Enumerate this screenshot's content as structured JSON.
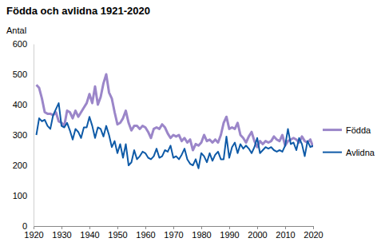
{
  "chart_data": {
    "type": "line",
    "title": "Födda och avlidna 1921-2020",
    "y_label": "Antal",
    "x": [
      1921,
      1922,
      1923,
      1924,
      1925,
      1926,
      1927,
      1928,
      1929,
      1930,
      1931,
      1932,
      1933,
      1934,
      1935,
      1936,
      1937,
      1938,
      1939,
      1940,
      1941,
      1942,
      1943,
      1944,
      1945,
      1946,
      1947,
      1948,
      1949,
      1950,
      1951,
      1952,
      1953,
      1954,
      1955,
      1956,
      1957,
      1958,
      1959,
      1960,
      1961,
      1962,
      1963,
      1964,
      1965,
      1966,
      1967,
      1968,
      1969,
      1970,
      1971,
      1972,
      1973,
      1974,
      1975,
      1976,
      1977,
      1978,
      1979,
      1980,
      1981,
      1982,
      1983,
      1984,
      1985,
      1986,
      1987,
      1988,
      1989,
      1990,
      1991,
      1992,
      1993,
      1994,
      1995,
      1996,
      1997,
      1998,
      1999,
      2000,
      2001,
      2002,
      2003,
      2004,
      2005,
      2006,
      2007,
      2008,
      2009,
      2010,
      2011,
      2012,
      2013,
      2014,
      2015,
      2016,
      2017,
      2018,
      2019,
      2020
    ],
    "xlim": [
      1920,
      2020
    ],
    "xticks": [
      1920,
      1930,
      1940,
      1950,
      1960,
      1970,
      1980,
      1990,
      2000,
      2010,
      2020
    ],
    "ylim": [
      0,
      600
    ],
    "yticks": [
      0,
      100,
      200,
      300,
      400,
      500,
      600
    ],
    "legend": "right",
    "series": [
      {
        "name": "Födda",
        "color": "#9b86c9",
        "values": [
          465,
          455,
          420,
          375,
          370,
          370,
          365,
          375,
          345,
          340,
          330,
          380,
          375,
          355,
          380,
          360,
          375,
          390,
          405,
          435,
          405,
          460,
          400,
          425,
          470,
          500,
          440,
          420,
          375,
          335,
          340,
          355,
          380,
          340,
          315,
          330,
          330,
          320,
          330,
          325,
          310,
          290,
          320,
          325,
          320,
          335,
          325,
          305,
          290,
          300,
          295,
          300,
          280,
          290,
          275,
          285,
          250,
          270,
          265,
          275,
          300,
          280,
          285,
          275,
          285,
          275,
          300,
          340,
          360,
          320,
          325,
          320,
          340,
          300,
          290,
          275,
          295,
          310,
          280,
          260,
          280,
          270,
          280,
          275,
          280,
          295,
          285,
          280,
          300,
          265,
          280,
          285,
          290,
          285,
          275,
          295,
          280,
          275,
          285,
          260
        ]
      },
      {
        "name": "Avlidna",
        "color": "#0e5aa7",
        "values": [
          300,
          355,
          345,
          350,
          330,
          320,
          365,
          385,
          405,
          330,
          325,
          340,
          315,
          285,
          320,
          310,
          290,
          325,
          325,
          360,
          330,
          290,
          325,
          320,
          295,
          330,
          300,
          260,
          280,
          240,
          270,
          225,
          270,
          200,
          210,
          250,
          220,
          230,
          245,
          240,
          225,
          220,
          230,
          255,
          225,
          230,
          250,
          245,
          265,
          225,
          230,
          220,
          235,
          255,
          220,
          205,
          200,
          220,
          190,
          240,
          230,
          210,
          240,
          215,
          235,
          245,
          220,
          220,
          295,
          225,
          260,
          275,
          240,
          270,
          255,
          265,
          255,
          240,
          260,
          290,
          240,
          250,
          260,
          255,
          260,
          250,
          245,
          250,
          245,
          265,
          320,
          270,
          275,
          250,
          290,
          270,
          230,
          280,
          260,
          265
        ]
      }
    ]
  }
}
